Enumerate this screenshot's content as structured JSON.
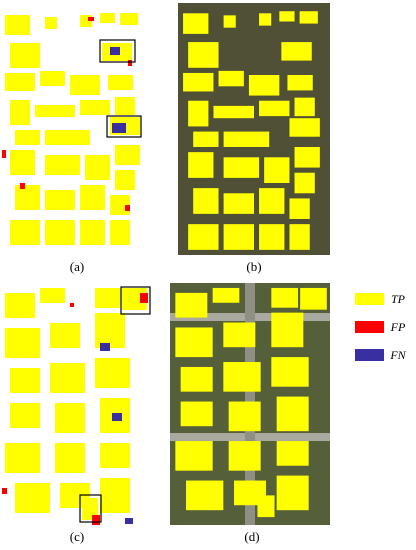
{
  "panels": [
    {
      "label": "(a)"
    },
    {
      "label": "(b)"
    },
    {
      "label": "(c)"
    },
    {
      "label": "(d)"
    }
  ],
  "legend": {
    "items": [
      {
        "label": "TP",
        "color": "#ffff00"
      },
      {
        "label": "FP",
        "color": "#ff0000"
      },
      {
        "label": "FN",
        "color": "#3a2fa0"
      }
    ]
  }
}
